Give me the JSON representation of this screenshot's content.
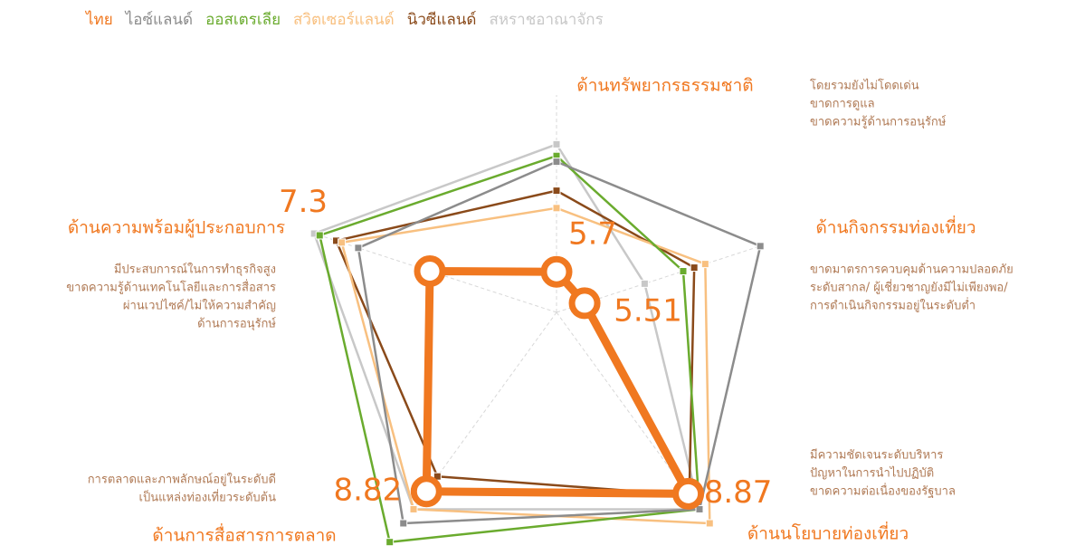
{
  "chart_data": {
    "type": "radar",
    "axes": [
      "ด้านทรัพยากรธรรมชาติ",
      "ด้านกิจกรรมท่องเที่ยว",
      "ด้านนโยบายท่องเที่ยว",
      "ด้านการสื่อสารการตลาด",
      "ด้านความพร้อมผู้ประกอบการ"
    ],
    "rlim": [
      5,
      10
    ],
    "series": [
      {
        "name": "ไทย",
        "color": "#f07820",
        "values": [
          5.7,
          5.51,
          8.87,
          8.82,
          7.3
        ]
      },
      {
        "name": "ไอซ์แลนด์",
        "color": "#8c8c8c",
        "values": [
          7.6,
          8.7,
          9.2,
          9.5,
          8.6
        ]
      },
      {
        "name": "ออสเตรเลีย",
        "color": "#6aab2e",
        "values": [
          7.7,
          7.3,
          9.2,
          9.9,
          9.3
        ]
      },
      {
        "name": "สวิตเซอร์แลนด์",
        "color": "#f8c080",
        "values": [
          6.8,
          7.7,
          9.5,
          9.2,
          8.9
        ]
      },
      {
        "name": "นิวซีแลนด์",
        "color": "#8a4a1a",
        "values": [
          7.1,
          7.5,
          8.9,
          8.5,
          9.0
        ]
      },
      {
        "name": "สหราชอาณาจักร",
        "color": "#c8c8c8",
        "values": [
          7.9,
          6.6,
          9.2,
          9.2,
          9.4
        ]
      }
    ],
    "annotations": [
      [
        "โดยรวมยังไม่โดดเด่น",
        "ขาดการดูแล",
        "ขาดความรู้ด้านการอนุรักษ์"
      ],
      [
        "ขาดมาตรการควบคุมด้านความปลอดภัย",
        "ระดับสากล/ ผู้เชี่ยวชาญยังมีไม่เพียงพอ/",
        "การดำเนินกิจกรรมอยู่ในระดับต่ำ"
      ],
      [
        "มีความชัดเจนระดับบริหาร",
        "ปัญหาในการนำไปปฏิบัติ",
        "ขาดความต่อเนื่องของรัฐบาล"
      ],
      [
        "การตลาดและภาพลักษณ์อยู่ในระดับดี",
        "เป็นแหล่งท่องเที่ยวระดับต้น"
      ],
      [
        "มีประสบการณ์ในการทำธุรกิจสูง",
        "ขาดความรู้ด้านเทคโนโลยีและการสื่อสาร",
        "ผ่านเวปไซค์/ไม่ให้ความสำคัญ",
        "ด้านการอนุรักษ์"
      ]
    ]
  }
}
